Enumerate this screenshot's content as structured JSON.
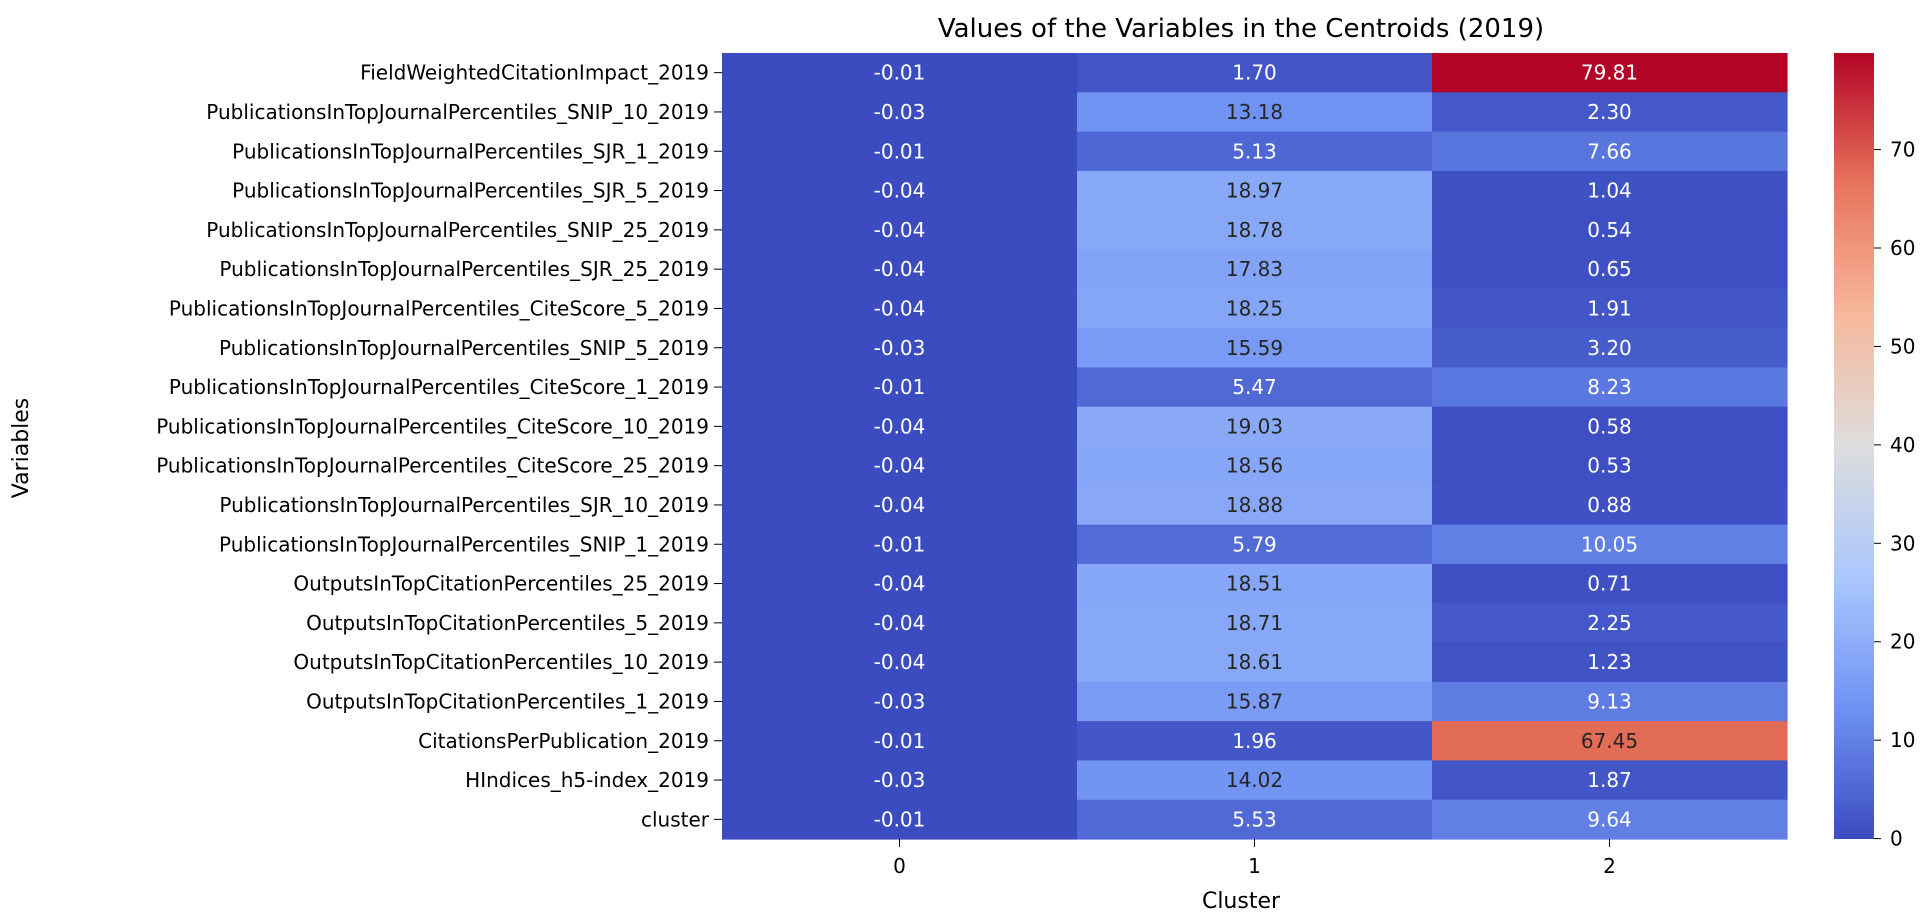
{
  "chart_data": {
    "type": "heatmap",
    "title": "Values of the Variables in the Centroids (2019)",
    "xlabel": "Cluster",
    "ylabel": "Variables",
    "x_categories": [
      "0",
      "1",
      "2"
    ],
    "y_categories": [
      "FieldWeightedCitationImpact_2019",
      "PublicationsInTopJournalPercentiles_SNIP_10_2019",
      "PublicationsInTopJournalPercentiles_SJR_1_2019",
      "PublicationsInTopJournalPercentiles_SJR_5_2019",
      "PublicationsInTopJournalPercentiles_SNIP_25_2019",
      "PublicationsInTopJournalPercentiles_SJR_25_2019",
      "PublicationsInTopJournalPercentiles_CiteScore_5_2019",
      "PublicationsInTopJournalPercentiles_SNIP_5_2019",
      "PublicationsInTopJournalPercentiles_CiteScore_1_2019",
      "PublicationsInTopJournalPercentiles_CiteScore_10_2019",
      "PublicationsInTopJournalPercentiles_CiteScore_25_2019",
      "PublicationsInTopJournalPercentiles_SJR_10_2019",
      "PublicationsInTopJournalPercentiles_SNIP_1_2019",
      "OutputsInTopCitationPercentiles_25_2019",
      "OutputsInTopCitationPercentiles_5_2019",
      "OutputsInTopCitationPercentiles_10_2019",
      "OutputsInTopCitationPercentiles_1_2019",
      "CitationsPerPublication_2019",
      "HIndices_h5-index_2019",
      "cluster"
    ],
    "values": [
      [
        -0.01,
        1.7,
        79.81
      ],
      [
        -0.03,
        13.18,
        2.3
      ],
      [
        -0.01,
        5.13,
        7.66
      ],
      [
        -0.04,
        18.97,
        1.04
      ],
      [
        -0.04,
        18.78,
        0.54
      ],
      [
        -0.04,
        17.83,
        0.65
      ],
      [
        -0.04,
        18.25,
        1.91
      ],
      [
        -0.03,
        15.59,
        3.2
      ],
      [
        -0.01,
        5.47,
        8.23
      ],
      [
        -0.04,
        19.03,
        0.58
      ],
      [
        -0.04,
        18.56,
        0.53
      ],
      [
        -0.04,
        18.88,
        0.88
      ],
      [
        -0.01,
        5.79,
        10.05
      ],
      [
        -0.04,
        18.51,
        0.71
      ],
      [
        -0.04,
        18.71,
        2.25
      ],
      [
        -0.04,
        18.61,
        1.23
      ],
      [
        -0.03,
        15.87,
        9.13
      ],
      [
        -0.01,
        1.96,
        67.45
      ],
      [
        -0.03,
        14.02,
        1.87
      ],
      [
        -0.01,
        5.53,
        9.64
      ]
    ],
    "value_format": "0.00",
    "colormap": "coolwarm",
    "colormap_stops": [
      "#3b4cc0",
      "#6f92f3",
      "#aac7fd",
      "#dddddd",
      "#f7b89c",
      "#e7745b",
      "#b40426"
    ],
    "colorbar": {
      "range": [
        -0.04,
        79.81
      ],
      "ticks": [
        "0",
        "10",
        "20",
        "30",
        "40",
        "50",
        "60",
        "70"
      ],
      "tick_values": [
        0,
        10,
        20,
        30,
        40,
        50,
        60,
        70
      ]
    },
    "grid": false,
    "legend": "colorbar-right"
  }
}
